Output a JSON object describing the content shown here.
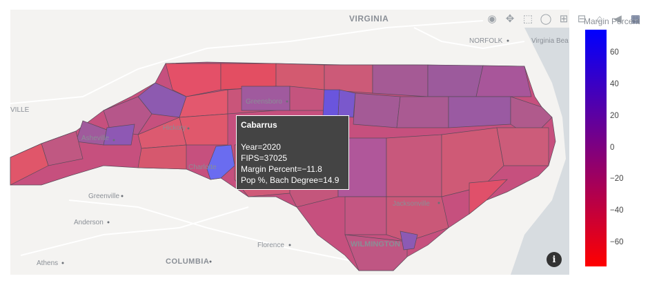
{
  "modebar": {
    "buttons": [
      "camera-icon",
      "pan-icon",
      "box-select-icon",
      "lasso-icon",
      "zoom-in-icon",
      "zoom-out-icon",
      "home-icon",
      "reset-icon",
      "plotly-logo-icon"
    ]
  },
  "map_labels": {
    "virginia": "VIRGINIA",
    "norfolk": "NORFOLK",
    "virginia_beach": "Virginia Bea",
    "ville": "VILLE",
    "greensboro": "Greensboro",
    "hickory": "Hickory",
    "asheville": "Asheville",
    "charlotte": "Charlotte",
    "greenville": "Greenville",
    "anderson": "Anderson",
    "florence": "Florence",
    "athens": "Athens",
    "columbia": "COLUMBIA",
    "jacksonville": "Jacksonville",
    "wilmington": "WILMINGTON"
  },
  "hover": {
    "county": "Cabarrus",
    "year": "Year=2020",
    "fips": "FIPS=37025",
    "margin": "Margin Percent=−11.8",
    "pop": "Pop %, Bach Degree=14.9"
  },
  "colorbar": {
    "title": "Margin Percent",
    "ticks": [
      "60",
      "40",
      "20",
      "0",
      "−20",
      "−40",
      "−60"
    ],
    "tick_values": [
      60,
      40,
      20,
      0,
      -20,
      -40,
      -60
    ],
    "range": [
      -75,
      75
    ],
    "colors": {
      "high": "#0000ff",
      "mid": "#7f007f",
      "low": "#ff0000"
    }
  },
  "colors": {
    "land": "#f4f3f1",
    "water": "#d7dce0",
    "road": "#ffffff"
  }
}
